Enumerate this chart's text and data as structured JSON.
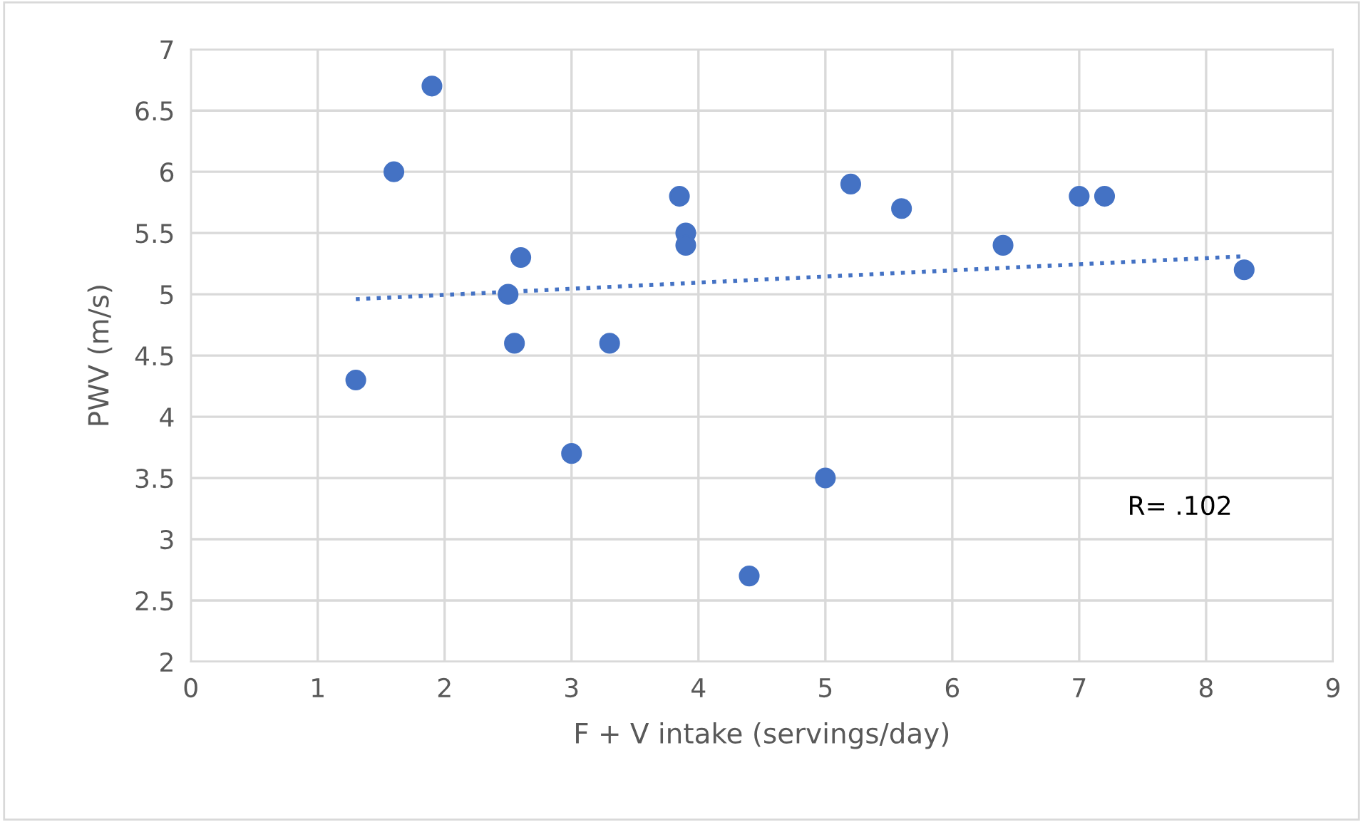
{
  "chart_data": {
    "type": "scatter",
    "xlabel": "F + V intake (servings/day)",
    "ylabel": "PWV (m/s)",
    "xlim": [
      0,
      9
    ],
    "xticks": [
      0,
      1,
      2,
      3,
      4,
      5,
      6,
      7,
      8,
      9
    ],
    "ylim": [
      2,
      7
    ],
    "yticks": [
      2,
      2.5,
      3,
      3.5,
      4,
      4.5,
      5,
      5.5,
      6,
      6.5,
      7
    ],
    "grid": true,
    "series": [
      {
        "color": "#4472c4",
        "marker": "circle",
        "x": [
          1.3,
          1.6,
          1.9,
          2.5,
          2.55,
          2.6,
          3.0,
          3.3,
          3.85,
          3.9,
          3.9,
          4.4,
          5.0,
          5.2,
          5.6,
          6.4,
          7.0,
          7.2,
          8.3
        ],
        "values": [
          4.3,
          6.0,
          6.7,
          5.0,
          4.6,
          5.3,
          3.7,
          4.6,
          5.8,
          5.5,
          5.4,
          2.7,
          3.5,
          5.9,
          5.7,
          5.4,
          5.8,
          5.8,
          5.2
        ]
      },
      {
        "type": "line",
        "color": "#4472c4",
        "marker": "none",
        "line_style": "dotted",
        "x": [
          1.3,
          8.3
        ],
        "values": [
          4.96,
          5.31
        ]
      }
    ],
    "annotations": [
      "R= .102"
    ]
  }
}
